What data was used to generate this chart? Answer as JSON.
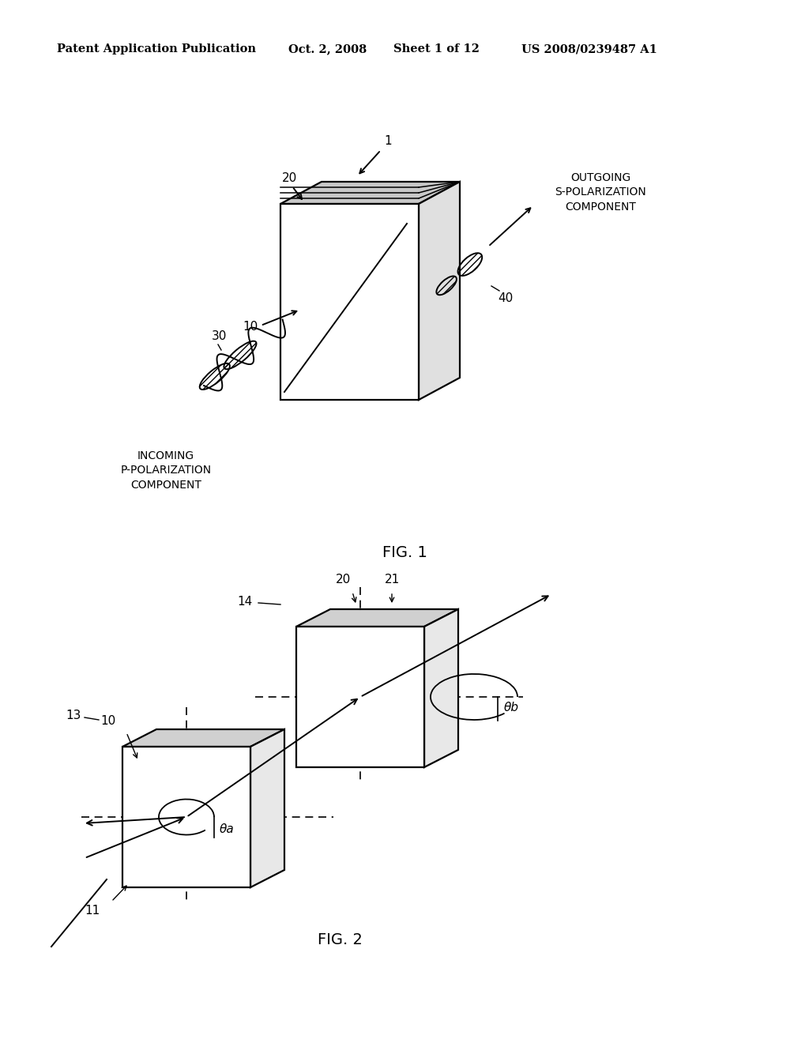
{
  "bg_color": "#ffffff",
  "header_text": "Patent Application Publication",
  "header_date": "Oct. 2, 2008",
  "header_sheet": "Sheet 1 of 12",
  "header_patent": "US 2008/0239487 A1",
  "fig1_label": "FIG. 1",
  "fig2_label": "FIG. 2",
  "fig1_ref1": "1",
  "fig1_ref20": "20",
  "fig1_ref10": "10",
  "fig1_ref30": "30",
  "fig1_ref40": "40",
  "fig1_incoming": "INCOMING\nP-POLARIZATION\nCOMPONENT",
  "fig1_outgoing": "OUTGOING\nS-POLARIZATION\nCOMPONENT",
  "fig2_ref10": "10",
  "fig2_ref11": "11",
  "fig2_ref13": "13",
  "fig2_ref14": "14",
  "fig2_ref20": "20",
  "fig2_ref21": "21",
  "fig2_theta_a": "θa",
  "fig2_theta_b": "θb"
}
